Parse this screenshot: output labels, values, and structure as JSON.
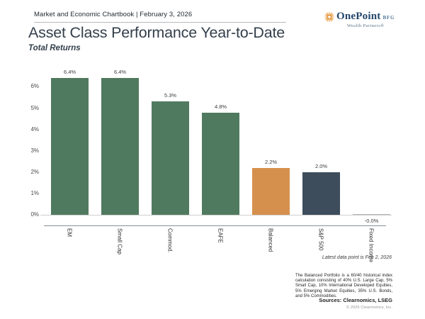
{
  "header": {
    "title": "Market and Economic Chartbook | February 3, 2026",
    "logo": {
      "icon": "sunburst-icon",
      "name": "OnePoint",
      "suffix": "BFG",
      "tagline": "Wealth Partners®"
    }
  },
  "chart": {
    "title": "Asset Class Performance Year-to-Date",
    "subtitle": "Total Returns",
    "latest_note": "Latest data point is Feb 2, 2026",
    "footnote": "The Balanced Portfolio is a 60/40 historical index calculation consisting of 40% U.S. Large Cap, 5% Small Cap, 10% International Developed Equities, 5% Emerging Market Equities, 35% U.S. Bonds, and 5% Commodities.",
    "sources": "Sources: Clearnomics, LSEG",
    "copyright": "© 2026 Clearnomics, Inc."
  },
  "chart_data": {
    "type": "bar",
    "title": "Asset Class Performance Year-to-Date",
    "subtitle": "Total Returns",
    "categories": [
      "EM",
      "Small Cap",
      "Commod.",
      "EAFE",
      "Balanced",
      "S&P 500",
      "Fixed Income"
    ],
    "values": [
      6.4,
      6.4,
      5.3,
      4.8,
      2.2,
      2.0,
      -0.0
    ],
    "value_labels": [
      "6.4%",
      "6.4%",
      "5.3%",
      "4.8%",
      "2.2%",
      "2.0%",
      "-0.0%"
    ],
    "bar_colors": [
      "#507a5f",
      "#507a5f",
      "#507a5f",
      "#507a5f",
      "#d6904e",
      "#3d4d5c",
      "#b5b5b5"
    ],
    "ytick_values": [
      0,
      1,
      2,
      3,
      4,
      5,
      6
    ],
    "ytick_labels": [
      "0%",
      "1%",
      "2%",
      "3%",
      "4%",
      "5%",
      "6%"
    ],
    "ylim": [
      0,
      6.6
    ],
    "xlabel": "",
    "ylabel": "",
    "grid": false,
    "legend": false
  },
  "colors": {
    "title_text": "#333f4b",
    "green_bar": "#507a5f",
    "orange_bar": "#d6904e",
    "slate_bar": "#3d4d5c",
    "logo_navy": "#24466b",
    "logo_orange": "#e89b3c"
  }
}
